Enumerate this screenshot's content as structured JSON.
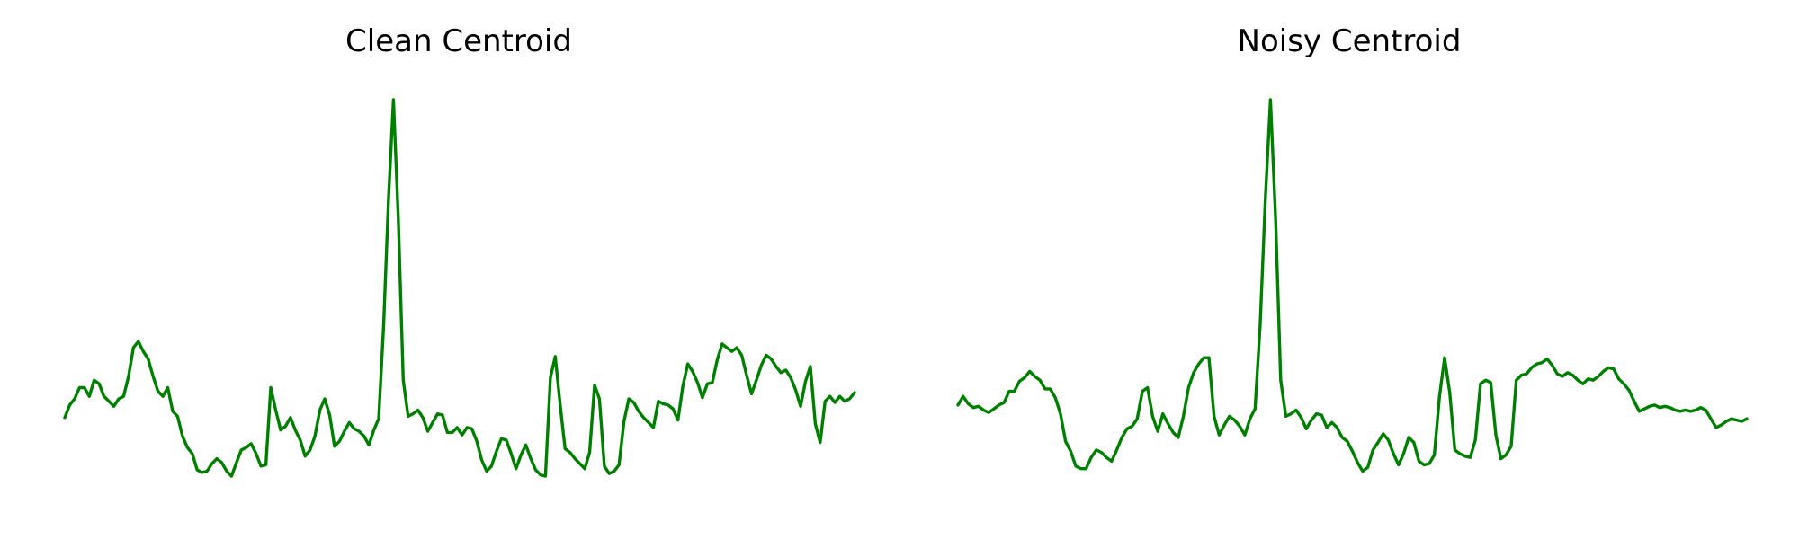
{
  "line_color": "#008000",
  "chart_data": [
    {
      "type": "line",
      "title": "Clean Centroid",
      "xlabel": "",
      "ylabel": "",
      "axes_visible": false,
      "grid": false,
      "xlim": [
        0,
        150
      ],
      "ylim": [
        -0.6,
        2.7
      ],
      "series": [
        {
          "color": "#008000",
          "y": [
            0.05,
            0.15,
            0.2,
            0.29,
            0.29,
            0.22,
            0.35,
            0.32,
            0.22,
            0.18,
            0.14,
            0.2,
            0.22,
            0.38,
            0.61,
            0.66,
            0.58,
            0.52,
            0.38,
            0.26,
            0.22,
            0.29,
            0.1,
            0.06,
            -0.1,
            -0.19,
            -0.24,
            -0.37,
            -0.39,
            -0.38,
            -0.32,
            -0.28,
            -0.31,
            -0.38,
            -0.42,
            -0.31,
            -0.21,
            -0.19,
            -0.16,
            -0.24,
            -0.34,
            -0.33,
            0.29,
            0.11,
            -0.05,
            -0.02,
            0.05,
            -0.05,
            -0.13,
            -0.26,
            -0.21,
            -0.1,
            0.11,
            0.2,
            0.07,
            -0.18,
            -0.14,
            -0.06,
            0.01,
            -0.04,
            -0.06,
            -0.1,
            -0.17,
            -0.05,
            0.04,
            0.79,
            1.8,
            2.6,
            1.65,
            0.35,
            0.06,
            0.08,
            0.11,
            0.05,
            -0.06,
            0.01,
            0.08,
            0.07,
            -0.07,
            -0.07,
            -0.03,
            -0.09,
            -0.03,
            -0.04,
            -0.14,
            -0.29,
            -0.38,
            -0.34,
            -0.22,
            -0.12,
            -0.13,
            -0.24,
            -0.36,
            -0.25,
            -0.17,
            -0.28,
            -0.37,
            -0.41,
            -0.42,
            0.37,
            0.54,
            0.15,
            -0.2,
            -0.23,
            -0.28,
            -0.32,
            -0.36,
            -0.23,
            0.31,
            0.2,
            -0.34,
            -0.4,
            -0.38,
            -0.33,
            0.02,
            0.2,
            0.17,
            0.1,
            0.05,
            0.01,
            -0.03,
            0.18,
            0.16,
            0.15,
            0.12,
            0.03,
            0.3,
            0.48,
            0.42,
            0.33,
            0.21,
            0.32,
            0.33,
            0.51,
            0.64,
            0.61,
            0.58,
            0.61,
            0.55,
            0.39,
            0.24,
            0.35,
            0.47,
            0.55,
            0.52,
            0.46,
            0.41,
            0.43,
            0.37,
            0.27,
            0.14,
            0.34,
            0.46,
            0.0,
            -0.15,
            0.18,
            0.22,
            0.17,
            0.22,
            0.18,
            0.2,
            0.25
          ]
        }
      ]
    },
    {
      "type": "line",
      "title": "Noisy Centroid",
      "xlabel": "",
      "ylabel": "",
      "axes_visible": false,
      "grid": false,
      "xlim": [
        0,
        150
      ],
      "ylim": [
        -0.6,
        2.7
      ],
      "series": [
        {
          "color": "#008000",
          "y": [
            0.15,
            0.22,
            0.16,
            0.13,
            0.14,
            0.11,
            0.09,
            0.12,
            0.15,
            0.17,
            0.26,
            0.26,
            0.34,
            0.37,
            0.42,
            0.38,
            0.35,
            0.28,
            0.28,
            0.21,
            0.08,
            -0.14,
            -0.22,
            -0.34,
            -0.36,
            -0.36,
            -0.27,
            -0.21,
            -0.23,
            -0.27,
            -0.3,
            -0.21,
            -0.11,
            -0.04,
            -0.02,
            0.04,
            0.26,
            0.29,
            0.06,
            -0.06,
            0.08,
            0.0,
            -0.07,
            -0.11,
            0.06,
            0.29,
            0.41,
            0.48,
            0.53,
            0.53,
            0.06,
            -0.09,
            -0.01,
            0.06,
            0.03,
            -0.02,
            -0.09,
            0.04,
            0.12,
            0.8,
            1.8,
            2.6,
            1.65,
            0.35,
            0.06,
            0.08,
            0.11,
            0.05,
            -0.04,
            0.03,
            0.08,
            0.07,
            -0.03,
            0.01,
            -0.03,
            -0.11,
            -0.14,
            -0.22,
            -0.31,
            -0.38,
            -0.35,
            -0.21,
            -0.15,
            -0.08,
            -0.13,
            -0.24,
            -0.33,
            -0.24,
            -0.11,
            -0.15,
            -0.3,
            -0.33,
            -0.32,
            -0.25,
            0.22,
            0.53,
            0.25,
            -0.21,
            -0.24,
            -0.26,
            -0.27,
            -0.13,
            0.32,
            0.35,
            0.33,
            -0.09,
            -0.28,
            -0.25,
            -0.18,
            0.35,
            0.39,
            0.4,
            0.45,
            0.48,
            0.49,
            0.52,
            0.47,
            0.4,
            0.38,
            0.41,
            0.39,
            0.35,
            0.32,
            0.36,
            0.35,
            0.38,
            0.42,
            0.45,
            0.44,
            0.36,
            0.32,
            0.27,
            0.18,
            0.1,
            0.12,
            0.14,
            0.15,
            0.13,
            0.14,
            0.13,
            0.11,
            0.1,
            0.11,
            0.1,
            0.11,
            0.13,
            0.11,
            0.04,
            -0.03,
            -0.01,
            0.02,
            0.04,
            0.03,
            0.02,
            0.04
          ]
        }
      ]
    }
  ]
}
